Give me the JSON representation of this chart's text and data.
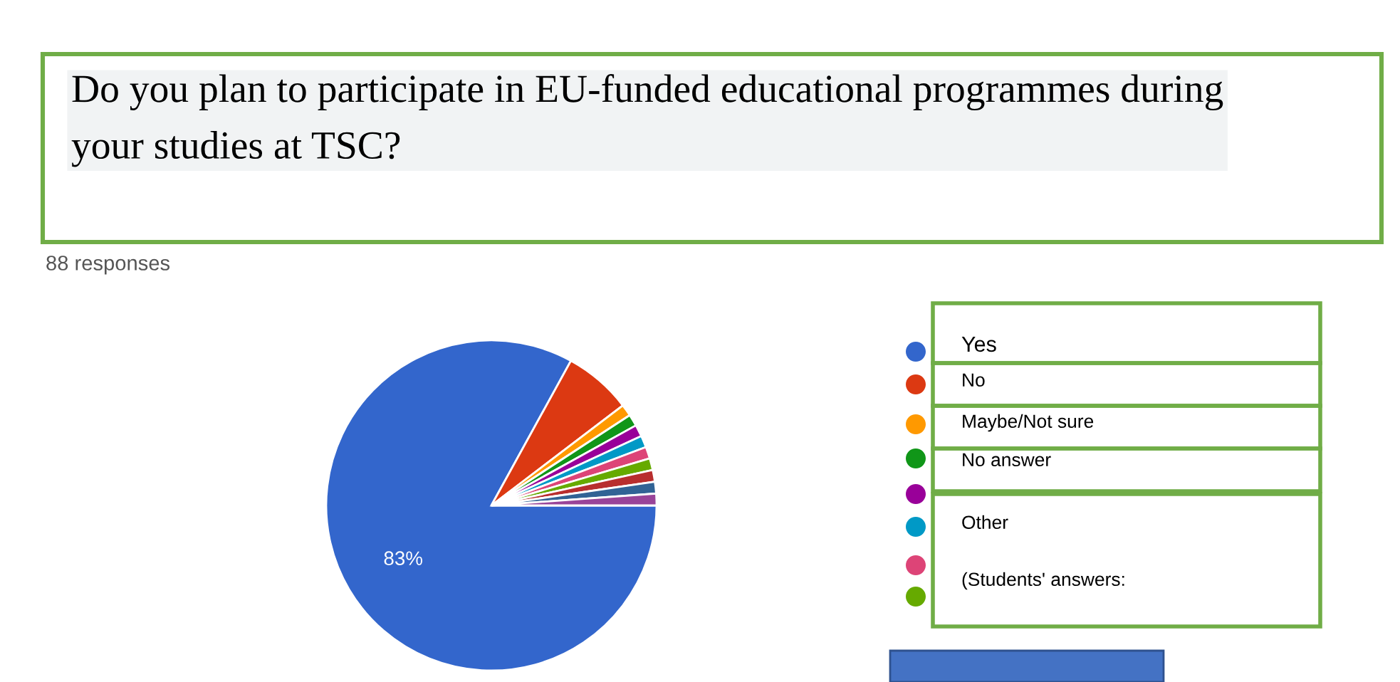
{
  "chart_data": {
    "type": "pie",
    "title": "Do you plan to participate in EU-funded educational programmes during\nyour studies at TSC?",
    "subtitle": "88 responses",
    "categories": [
      "Yes",
      "No",
      "Maybe/Not sure",
      "No answer",
      null,
      "Other",
      null,
      null,
      null,
      null,
      null
    ],
    "values": [
      83,
      6.65,
      1.15,
      1.15,
      1.15,
      1.15,
      1.15,
      1.15,
      1.15,
      1.15,
      1.15
    ],
    "value_labels": [
      "83%",
      null,
      null,
      null,
      null,
      null,
      null,
      null,
      null,
      null,
      null
    ],
    "colors": [
      "#3366cc",
      "#dc3912",
      "#ff9900",
      "#109618",
      "#990099",
      "#0099c6",
      "#dd4477",
      "#66aa00",
      "#b82e2e",
      "#316395",
      "#994499"
    ],
    "legend": "right",
    "annotations": [
      "(Students' answers:"
    ]
  }
}
